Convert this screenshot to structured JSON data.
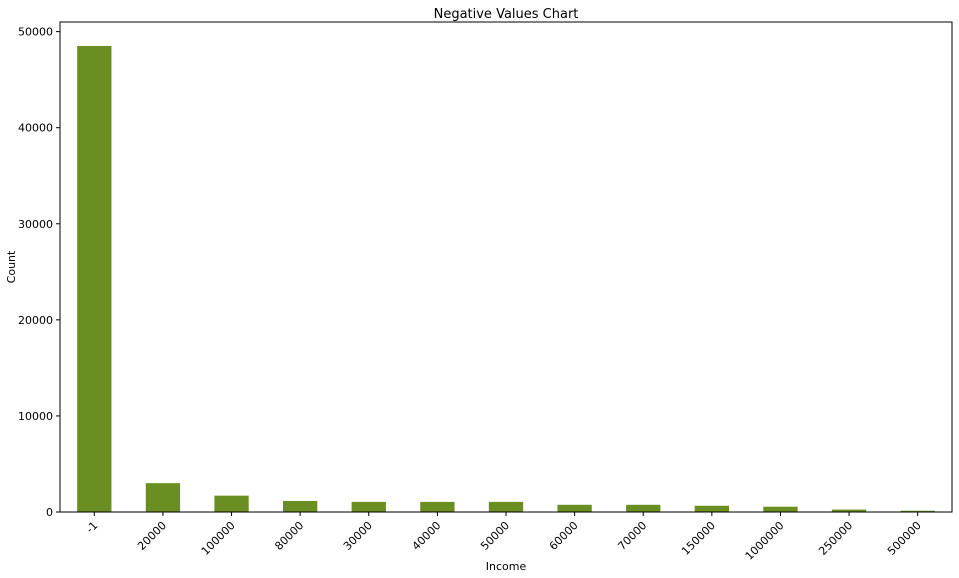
{
  "chart_data": {
    "type": "bar",
    "title": "Negative Values Chart",
    "xlabel": "Income",
    "ylabel": "Count",
    "categories": [
      "-1",
      "20000",
      "100000",
      "80000",
      "30000",
      "40000",
      "50000",
      "60000",
      "70000",
      "150000",
      "1000000",
      "250000",
      "500000"
    ],
    "values": [
      48500,
      3000,
      1700,
      1150,
      1050,
      1050,
      1050,
      750,
      750,
      650,
      550,
      250,
      130
    ],
    "ylim": [
      0,
      51000
    ],
    "yticks": [
      0,
      10000,
      20000,
      30000,
      40000,
      50000
    ],
    "bar_color": "#6b8e23",
    "grid": false,
    "legend": "none"
  }
}
